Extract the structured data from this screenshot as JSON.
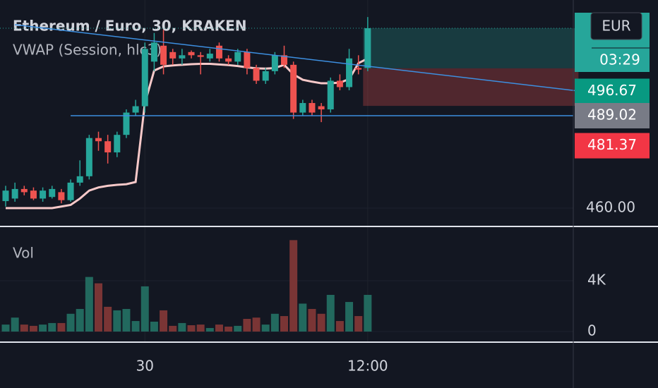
{
  "chart_data": [
    {
      "type": "candlestick",
      "title": "Ethereum / Euro, 30, KRAKEN",
      "currency": "EUR",
      "countdown": "03:29",
      "categories": [
        null,
        null,
        null,
        null,
        null,
        null,
        null,
        null,
        null,
        null,
        null,
        null,
        null,
        null,
        null,
        "30",
        null,
        null,
        null,
        null,
        null,
        null,
        null,
        null,
        null,
        null,
        null,
        null,
        null,
        null,
        null,
        null,
        null,
        null,
        null,
        null,
        null,
        null,
        null,
        "12:00"
      ],
      "open": [
        462.2,
        463,
        466,
        465.5,
        463,
        463.5,
        465,
        462.5,
        468,
        470,
        482,
        481,
        477.5,
        483,
        490,
        492,
        506,
        511,
        509,
        507,
        509,
        508,
        507,
        511,
        507,
        506,
        509,
        504,
        500,
        503,
        508,
        505,
        490,
        493,
        492,
        491,
        500,
        498,
        504,
        504
      ],
      "high": [
        467,
        468,
        467,
        466.5,
        466.5,
        467,
        466,
        469,
        475,
        483,
        484,
        483,
        484,
        491,
        494,
        512,
        515,
        516,
        510,
        510,
        509.5,
        509,
        510,
        512,
        508,
        510,
        510,
        505,
        504,
        509,
        511,
        506,
        494,
        494,
        493,
        501,
        502,
        510,
        508,
        520
      ],
      "low": [
        460.5,
        462,
        464,
        462.5,
        462,
        463,
        461.5,
        462,
        467,
        469,
        478,
        474,
        476,
        482,
        489,
        490,
        503,
        502,
        505,
        505,
        507,
        502,
        506,
        506,
        505,
        505,
        502,
        499,
        499,
        502,
        504,
        488,
        489,
        489,
        487,
        490,
        497,
        497,
        502,
        503
      ],
      "close": [
        465.5,
        466,
        465,
        463,
        465.5,
        466,
        462.5,
        468,
        470,
        482,
        481,
        477.5,
        483,
        490,
        492,
        510,
        512,
        505,
        507,
        508,
        508,
        507.5,
        508.5,
        507,
        506,
        509,
        504,
        500,
        503,
        508,
        505,
        490,
        493,
        490,
        491,
        500,
        498,
        507,
        503.5,
        516.5
      ],
      "up_color": "#26a69a",
      "down_color": "#ef5350",
      "vwap": {
        "name": "VWAP (Session, hlc3)",
        "color": "#f7c9c9",
        "values": [
          460,
          460,
          460,
          460,
          460,
          460,
          460.5,
          461,
          463,
          465.5,
          466.5,
          467,
          467.3,
          467.5,
          468.2,
          493,
          503.2,
          504.5,
          504.8,
          505,
          505.2,
          505.3,
          505.3,
          505.1,
          504.9,
          504.6,
          504.2,
          503.9,
          503.8,
          504,
          505,
          502,
          500.3,
          499.7,
          499.2,
          499.2,
          499.4,
          500.5,
          505.5,
          507
        ]
      },
      "trendline": {
        "x": [
          1,
          62
        ],
        "values": [
          517.6,
          496.67
        ],
        "color": "#3d8fe0"
      },
      "hline": {
        "x": 7,
        "value": 489.02,
        "color": "#3d8fe0",
        "label_color": "#787b86"
      },
      "stop_label": {
        "value": 481.37,
        "color": "#f23645"
      },
      "position": {
        "x": [
          38.5,
          61.7
        ],
        "target": 516.5,
        "entry": 503.9,
        "stop": 492.1
      },
      "last_price": 516.5,
      "xlim": [
        -0.6,
        61.7
      ],
      "ylim": [
        454.46,
        525.35
      ],
      "yticks": [
        {
          "value": 460,
          "label": "460.00"
        }
      ]
    },
    {
      "type": "bar",
      "title": "Vol",
      "values": [
        550,
        1100,
        550,
        450,
        550,
        670,
        670,
        1400,
        1780,
        4300,
        3800,
        1950,
        1670,
        1780,
        830,
        3560,
        780,
        1670,
        450,
        670,
        500,
        550,
        280,
        550,
        390,
        450,
        1000,
        1100,
        550,
        1400,
        1220,
        7200,
        2200,
        1780,
        1400,
        2890,
        830,
        2330,
        1220,
        2890
      ],
      "up_color": "#22695e",
      "down_color": "#7a3535",
      "ylim": [
        -778,
        8222
      ],
      "yticks": [
        0,
        {
          "value": 4000,
          "label": "4K"
        }
      ]
    }
  ]
}
